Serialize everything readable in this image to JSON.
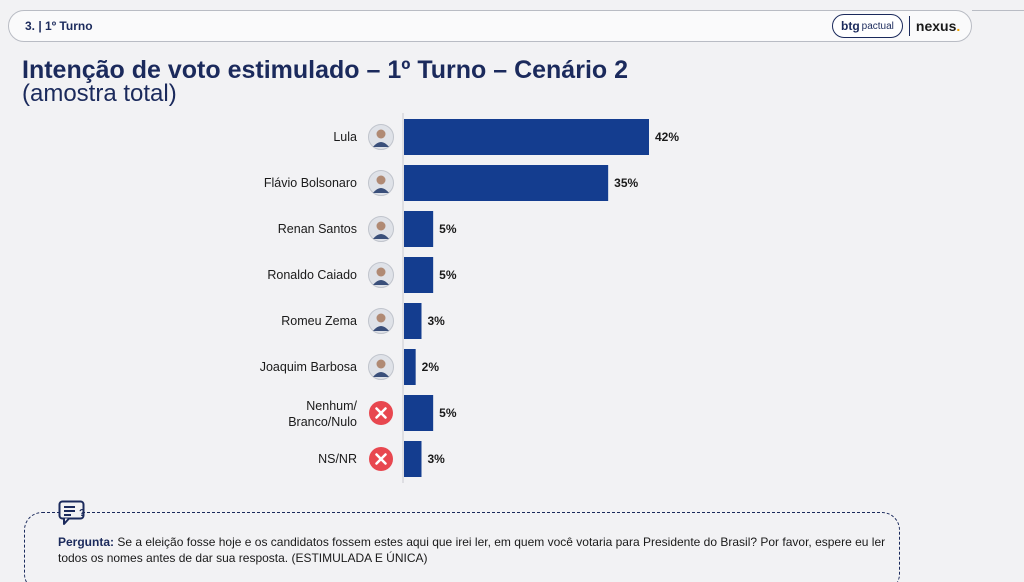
{
  "header": {
    "section_label": "3. | 1º Turno",
    "brand_primary": "btg",
    "brand_primary_sub": "pactual",
    "brand_secondary": "nexus",
    "brand_secondary_dot": "."
  },
  "colors": {
    "bar": "#143d8f",
    "title": "#1b2a5c",
    "none_icon": "#e8474f"
  },
  "chart_data": {
    "type": "bar",
    "orientation": "horizontal",
    "title": "Intenção de voto estimulado – 1º Turno – Cenário 2",
    "subtitle": "(amostra total)",
    "categories": [
      "Lula",
      "Flávio Bolsonaro",
      "Renan Santos",
      "Ronaldo Caiado",
      "Romeu Zema",
      "Joaquim Barbosa",
      "Nenhum/ Branco/Nulo",
      "NS/NR"
    ],
    "category_icons": [
      "avatar",
      "avatar",
      "avatar",
      "avatar",
      "avatar",
      "avatar",
      "x-icon",
      "x-icon"
    ],
    "values": [
      42,
      35,
      5,
      5,
      3,
      2,
      5,
      3
    ],
    "value_labels": [
      "42%",
      "35%",
      "5%",
      "5%",
      "3%",
      "2%",
      "5%",
      "3%"
    ],
    "unit": "%",
    "grid": false,
    "legend": "none"
  },
  "question": {
    "label": "Pergunta:",
    "text": " Se a eleição fosse hoje e os candidatos fossem estes aqui que irei ler, em quem você votaria para Presidente do Brasil? Por favor, espere eu ler todos os nomes antes de dar sua resposta. (ESTIMULADA E ÚNICA)"
  }
}
